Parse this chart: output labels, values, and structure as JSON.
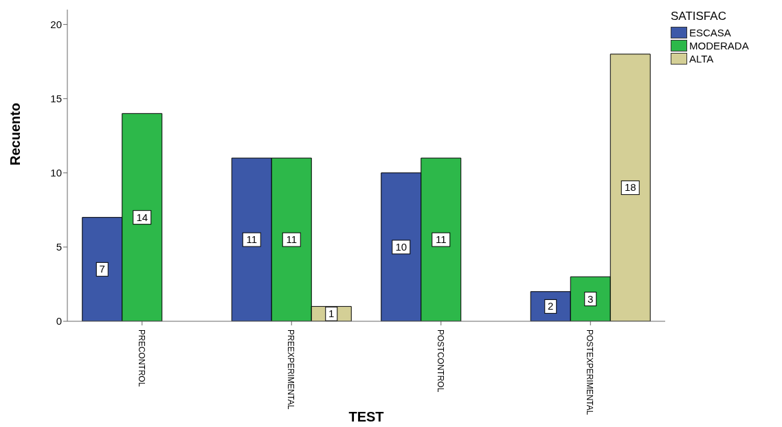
{
  "chart_data": {
    "type": "bar",
    "xlabel": "TEST",
    "ylabel": "Recuento",
    "legend_title": "SATISFAC",
    "categories": [
      "PRECONTROL",
      "PREEXPERIMENTAL",
      "POSTCONTROL",
      "POSTEXPERIMENTAL"
    ],
    "series": [
      {
        "name": "ESCASA",
        "color": "#3c58a8",
        "values": [
          7,
          11,
          10,
          2
        ]
      },
      {
        "name": "MODERADA",
        "color": "#2db84a",
        "values": [
          14,
          11,
          11,
          3
        ]
      },
      {
        "name": "ALTA",
        "color": "#d4cf96",
        "values": [
          null,
          1,
          null,
          18
        ]
      }
    ],
    "ylim": [
      0,
      21
    ],
    "yticks": [
      0,
      5,
      10,
      15,
      20
    ],
    "grid": false,
    "legend": "top right",
    "data_labels": true
  }
}
